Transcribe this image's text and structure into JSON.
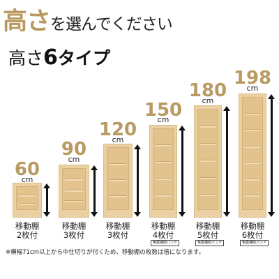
{
  "header": {
    "title_accent": "高さ",
    "title_rest": "を選んでください",
    "subtitle_pre": "高さ",
    "subtitle_num": "6",
    "subtitle_post": "タイプ"
  },
  "unit": "cm",
  "items": [
    {
      "height": "60",
      "line1": "移動棚",
      "line2": "2枚付",
      "shelves": 2,
      "badge": ""
    },
    {
      "height": "90",
      "line1": "移動棚",
      "line2": "3枚付",
      "shelves": 3,
      "badge": ""
    },
    {
      "height": "120",
      "line1": "移動棚",
      "line2": "3枚付",
      "shelves": 3,
      "badge": ""
    },
    {
      "height": "150",
      "line1": "移動棚",
      "line2": "4枚付",
      "shelves": 4,
      "badge": "免震補助バンド"
    },
    {
      "height": "180",
      "line1": "移動棚",
      "line2": "5枚付",
      "shelves": 5,
      "badge": "免震補助バンド"
    },
    {
      "height": "198",
      "line1": "移動棚",
      "line2": "6枚付",
      "shelves": 6,
      "badge": "免震補助バンド"
    }
  ],
  "footnote": "※横幅71cm以上から中仕切りが付くため、移動棚の枚数は倍になります。"
}
